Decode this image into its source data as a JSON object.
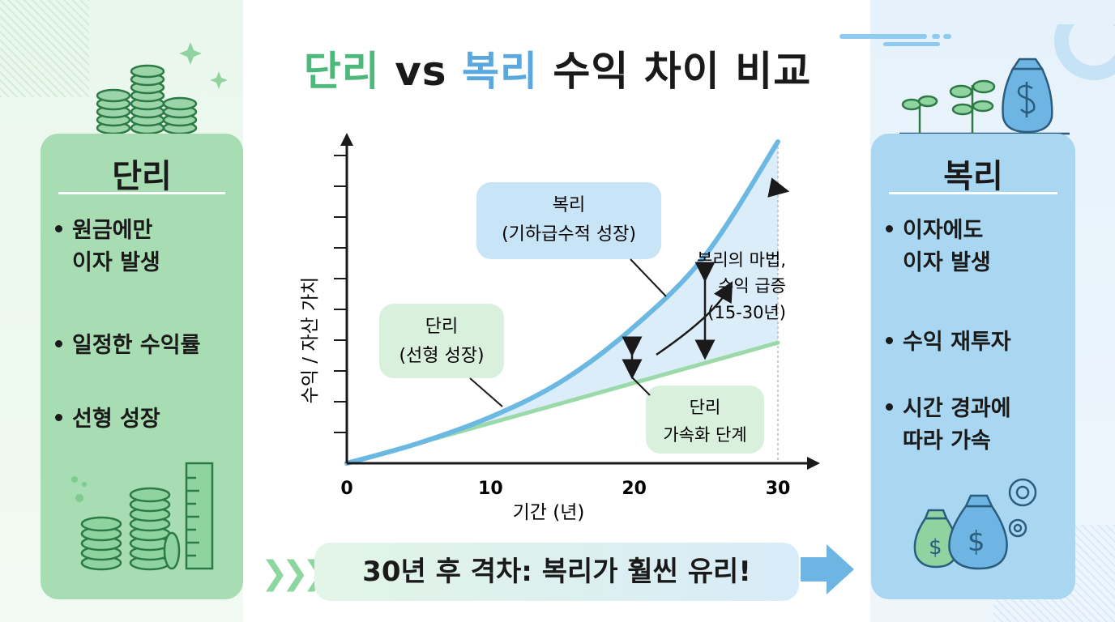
{
  "title": {
    "part1": "단리",
    "part2": "vs",
    "part3": "복리",
    "part4": "수익 차이 비교"
  },
  "left_card": {
    "title": "단리",
    "bullets": [
      {
        "line1": "원금에만",
        "line2": "이자 발생"
      },
      {
        "line1": "일정한 수익률",
        "line2": ""
      },
      {
        "line1": "선형 성장",
        "line2": ""
      }
    ]
  },
  "right_card": {
    "title": "복리",
    "bullets": [
      {
        "line1": "이자에도",
        "line2": "이자 발생"
      },
      {
        "line1": "수익 재투자",
        "line2": ""
      },
      {
        "line1": "시간 경과에",
        "line2": "따라 가속"
      }
    ]
  },
  "chart_data": {
    "type": "line",
    "xlabel": "기간 (년)",
    "ylabel": "수익 / 자산 가치",
    "xticks": [
      "0",
      "10",
      "20",
      "30"
    ],
    "xlim": [
      0,
      30
    ],
    "series": [
      {
        "name": "복리",
        "color": "#6bb8e3",
        "x": [
          0,
          5,
          10,
          15,
          20,
          25,
          30
        ],
        "y": [
          0,
          1.0,
          2.3,
          4.1,
          6.8,
          10.4,
          16.0
        ]
      },
      {
        "name": "단리",
        "color": "#9ad9a8",
        "x": [
          0,
          30
        ],
        "y": [
          0,
          6.0
        ]
      }
    ],
    "annotations": {
      "compound_label": {
        "line1": "복리",
        "line2": "(기하급수적 성장)"
      },
      "simple_label": {
        "line1": "단리",
        "line2": "(선형 성장)"
      },
      "accel_label": {
        "line1": "단리",
        "line2": "가속화 단계"
      },
      "magic_label": {
        "line1": "복리의 마법,",
        "line2": "수익 급증",
        "line3": "(15-30년)"
      }
    }
  },
  "banner": {
    "text": "30년 후 격차: 복리가 훨씬 유리!"
  },
  "colors": {
    "green": "#4cb87a",
    "blue": "#5aa8dd",
    "green_card": "#a8dcb2",
    "blue_card": "#a9d7f2"
  }
}
